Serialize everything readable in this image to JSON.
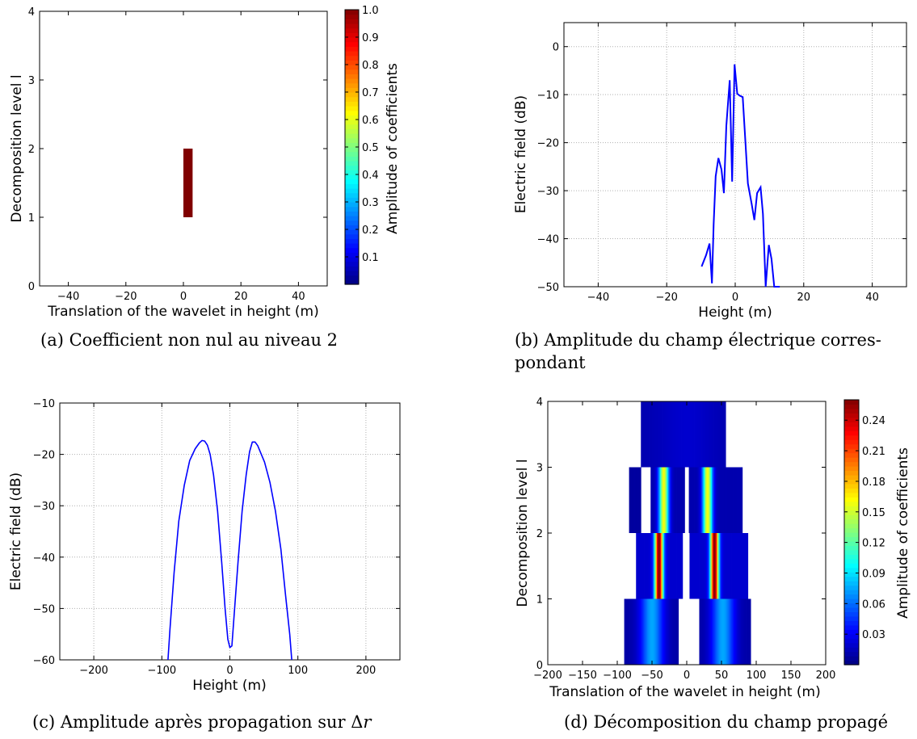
{
  "captions": {
    "a": "(a) Coefficient non nul au niveau 2",
    "b_line1": "(b) Amplitude du champ électrique corres-",
    "b_line2": "pondant",
    "c_prefix": "(c) Amplitude après propagation sur Δ",
    "c_var": "r",
    "d": "(d) Décomposition du champ propagé"
  },
  "colors": {
    "line": "#0000ff",
    "grid": "#b0b0b0",
    "cell_max": "#800000"
  },
  "chart_data": [
    {
      "id": "a",
      "type": "heatmap",
      "xlabel": "Translation of the wavelet in height (m)",
      "ylabel": "Decomposition level l",
      "xlim": [
        -50,
        50
      ],
      "ylim": [
        0,
        4
      ],
      "xticks": [
        "−40",
        "−20",
        "0",
        "20",
        "40"
      ],
      "yticks": [
        "0",
        "1",
        "2",
        "3",
        "4"
      ],
      "colorbar": {
        "label": "Amplitude of coefficients",
        "range": [
          0,
          1.0
        ],
        "ticks": [
          "0.1",
          "0.2",
          "0.3",
          "0.4",
          "0.5",
          "0.6",
          "0.7",
          "0.8",
          "0.9",
          "1.0"
        ]
      },
      "cells": [
        {
          "level": 1,
          "x0": 0,
          "x1": 3.2,
          "value": 1.0
        }
      ],
      "grid": false
    },
    {
      "id": "b",
      "type": "line",
      "xlabel": "Height (m)",
      "ylabel": "Electric field (dB)",
      "xlim": [
        -50,
        50
      ],
      "ylim": [
        -50,
        5
      ],
      "xticks": [
        "−40",
        "−20",
        "0",
        "20",
        "40"
      ],
      "yticks": [
        "0",
        "−10",
        "−20",
        "−30",
        "−40",
        "−50"
      ],
      "grid": true,
      "x": [
        -9.8,
        -8.5,
        -7.5,
        -6.8,
        -6.3,
        -5.7,
        -4.9,
        -4.0,
        -3.3,
        -2.6,
        -1.6,
        -0.9,
        -0.2,
        0.6,
        1.3,
        2.2,
        3.7,
        4.8,
        5.6,
        6.4,
        7.4,
        8.1,
        8.9,
        9.8,
        10.6,
        11.4,
        12.3,
        13.0
      ],
      "y": [
        -45.8,
        -43.4,
        -41.0,
        -49.3,
        -37.0,
        -27.0,
        -23.2,
        -25.6,
        -30.5,
        -16.5,
        -7.0,
        -28.1,
        -3.7,
        -9.8,
        -10.2,
        -10.5,
        -28.5,
        -32.8,
        -36.1,
        -30.5,
        -29.3,
        -34.8,
        -50.0,
        -41.3,
        -44.2,
        -50.0,
        -50.0,
        -50.0
      ]
    },
    {
      "id": "c",
      "type": "line",
      "xlabel": "Height (m)",
      "ylabel": "Electric field (dB)",
      "xlim": [
        -250,
        250
      ],
      "ylim": [
        -60,
        -10
      ],
      "xticks": [
        "−200",
        "−100",
        "0",
        "100",
        "200"
      ],
      "yticks": [
        "−10",
        "−20",
        "−30",
        "−40",
        "−50",
        "−60"
      ],
      "grid": true,
      "x": [
        -91,
        -88,
        -82,
        -75,
        -67,
        -59,
        -51,
        -45,
        -41,
        -37,
        -33,
        -29,
        -24,
        -18,
        -12,
        -7,
        -3,
        0,
        3,
        7,
        12,
        18,
        24,
        29,
        33,
        37,
        41,
        45,
        51,
        59,
        67,
        75,
        82,
        88,
        91
      ],
      "y": [
        -60,
        -54,
        -43,
        -33,
        -26,
        -21.2,
        -18.9,
        -17.8,
        -17.3,
        -17.4,
        -18.2,
        -20.0,
        -24,
        -31,
        -41,
        -50,
        -56,
        -57.6,
        -57.3,
        -50,
        -41,
        -31,
        -24,
        -19.5,
        -17.6,
        -17.6,
        -18.3,
        -19.6,
        -21.5,
        -25.5,
        -31,
        -38.5,
        -47.5,
        -55,
        -60
      ]
    },
    {
      "id": "d",
      "type": "heatmap",
      "xlabel": "Translation of the wavelet in height (m)",
      "ylabel": "Decomposition level l",
      "xlim": [
        -200,
        200
      ],
      "ylim": [
        0,
        4
      ],
      "xticks": [
        "−200",
        "−150",
        "−100",
        "−50",
        "0",
        "50",
        "100",
        "150",
        "200"
      ],
      "yticks": [
        "0",
        "1",
        "2",
        "3",
        "4"
      ],
      "colorbar": {
        "label": "Amplitude of coefficients",
        "range": [
          0,
          0.26
        ],
        "ticks": [
          "0.03",
          "0.06",
          "0.09",
          "0.12",
          "0.15",
          "0.18",
          "0.21",
          "0.24"
        ]
      },
      "grid": false,
      "blocks": [
        {
          "level": 0,
          "x0": -90,
          "x1": -12,
          "peak": -50,
          "width": 16,
          "max": 0.075,
          "floor": 0.01
        },
        {
          "level": 0,
          "x0": 18,
          "x1": 92,
          "peak": 52,
          "width": 16,
          "max": 0.075,
          "floor": 0.01
        },
        {
          "level": 1,
          "x0": -73,
          "x1": -6,
          "peak": -40,
          "width": 6,
          "max": 0.26,
          "floor": 0.02
        },
        {
          "level": 1,
          "x0": 4,
          "x1": 88,
          "peak": 40,
          "width": 6,
          "max": 0.26,
          "floor": 0.02
        },
        {
          "level": 2,
          "x0": -83,
          "x1": -66,
          "peak": -75,
          "width": 20,
          "max": 0.008,
          "floor": 0.008
        },
        {
          "level": 2,
          "x0": -52,
          "x1": -3,
          "peak": -33,
          "width": 7,
          "max": 0.16,
          "floor": 0.012
        },
        {
          "level": 2,
          "x0": 3,
          "x1": 80,
          "peak": 30,
          "width": 7,
          "max": 0.16,
          "floor": 0.012
        },
        {
          "level": 3,
          "x0": -66,
          "x1": 56,
          "peak": 0,
          "width": 40,
          "max": 0.02,
          "floor": 0.012
        }
      ]
    }
  ]
}
